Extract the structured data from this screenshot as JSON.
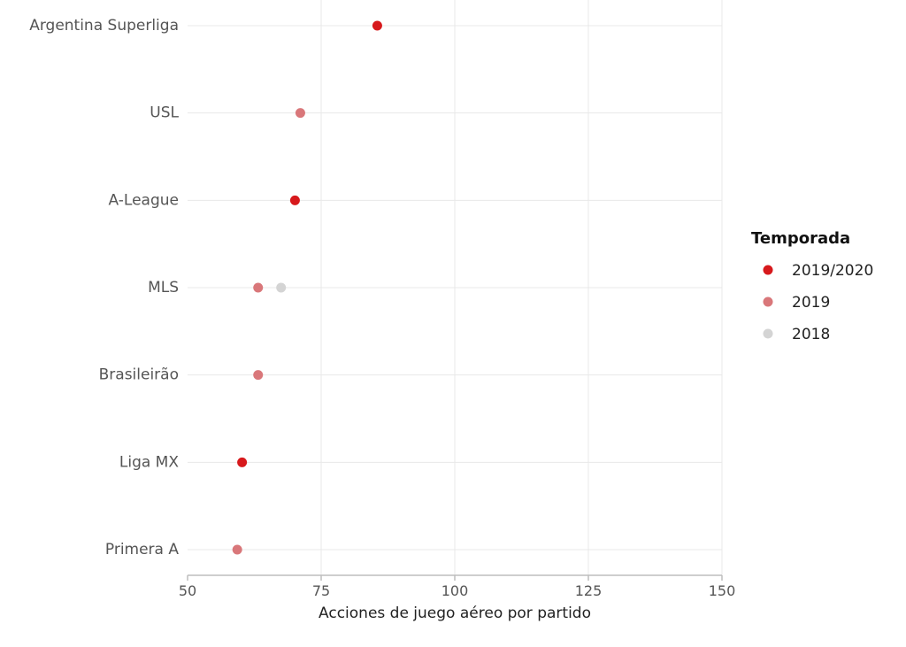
{
  "chart_data": {
    "type": "scatter",
    "xlabel": "Acciones de juego aéreo por partido",
    "xlim": [
      50,
      150
    ],
    "xticks": [
      50,
      75,
      100,
      125,
      150
    ],
    "grid": true,
    "legend_placement": "right",
    "categories": [
      "Argentina Superliga",
      "USL",
      "A-League",
      "MLS",
      "Brasileirão",
      "Liga MX",
      "Primera A"
    ],
    "legend": {
      "title": "Temporada",
      "entries": [
        {
          "name": "2019/2020",
          "color": "#d7191c"
        },
        {
          "name": "2019",
          "color": "#d9777a"
        },
        {
          "name": "2018",
          "color": "#d4d4d4"
        }
      ]
    },
    "series": [
      {
        "name": "2019/2020",
        "color": "#d7191c",
        "points": [
          {
            "category": "Argentina Superliga",
            "x": 85.5
          },
          {
            "category": "A-League",
            "x": 70.1
          },
          {
            "category": "Liga MX",
            "x": 60.2
          }
        ]
      },
      {
        "name": "2019",
        "color": "#d9777a",
        "points": [
          {
            "category": "USL",
            "x": 71.1
          },
          {
            "category": "MLS",
            "x": 63.2
          },
          {
            "category": "Brasileirão",
            "x": 63.2
          },
          {
            "category": "Primera A",
            "x": 59.3
          }
        ]
      },
      {
        "name": "2018",
        "color": "#d4d4d4",
        "points": [
          {
            "category": "MLS",
            "x": 67.5
          }
        ]
      }
    ]
  }
}
